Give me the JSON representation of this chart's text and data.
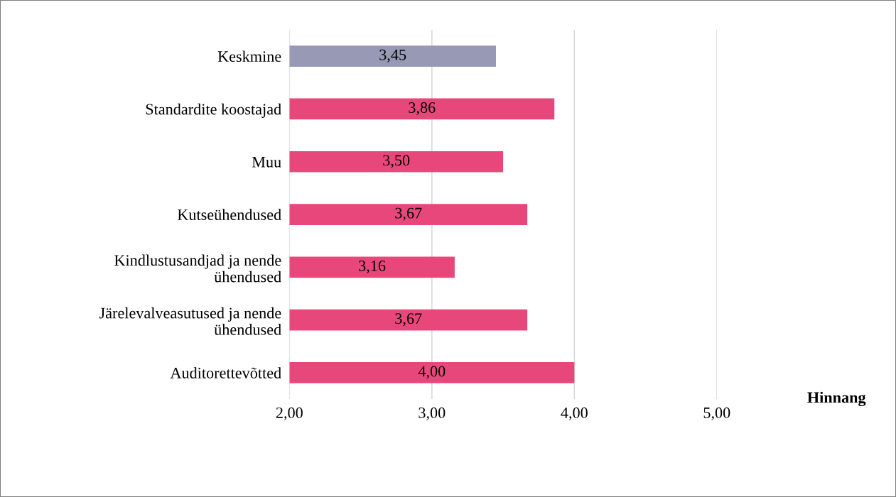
{
  "chart_data": {
    "type": "bar",
    "orientation": "horizontal",
    "xlabel": "Hinnang",
    "categories": [
      "Keskmine",
      "Standardite koostajad",
      "Muu",
      "Kutseühendused",
      "Kindlustusandjad ja nende\nühendused",
      "Järelevalveasutused ja nende\nühendused",
      "Auditorettevõtted"
    ],
    "values": [
      3.45,
      3.86,
      3.5,
      3.67,
      3.16,
      3.67,
      4.0
    ],
    "value_labels": [
      "3,45",
      "3,86",
      "3,50",
      "3,67",
      "3,16",
      "3,67",
      "4,00"
    ],
    "colors": [
      "#9799b5",
      "#e8477c",
      "#e8477c",
      "#e8477c",
      "#e8477c",
      "#e8477c",
      "#e8477c"
    ],
    "xlim": [
      2,
      5
    ],
    "xticks": [
      {
        "value": 2,
        "label": "2,00"
      },
      {
        "value": 3,
        "label": "3,00"
      },
      {
        "value": 4,
        "label": "4,00"
      },
      {
        "value": 5,
        "label": "5,00"
      }
    ],
    "grid": "x"
  }
}
